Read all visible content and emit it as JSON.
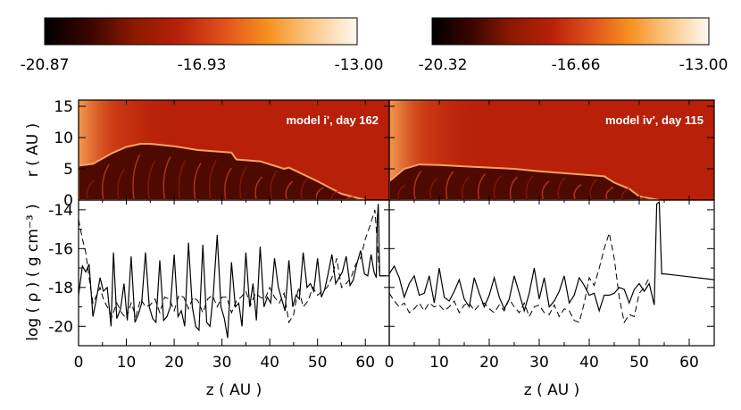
{
  "colors": {
    "colormap": [
      "#000000",
      "#3a0500",
      "#8a1a00",
      "#b8200a",
      "#e0501a",
      "#f7901f",
      "#fbc98a",
      "#fff8f0"
    ],
    "map_background": "#b8200a",
    "solid_line": "#000000",
    "dashed_line": "#000000"
  },
  "colorbars": [
    {
      "ticks": [
        "-20.87",
        "-16.93",
        "-13.00"
      ]
    },
    {
      "ticks": [
        "-20.32",
        "-16.66",
        "-13.00"
      ]
    }
  ],
  "chart_data": [
    {
      "type": "heatmap",
      "panel": "top-left",
      "annotation": "model i', day 162",
      "xlabel": "",
      "ylabel": "r ( AU )",
      "xlim": [
        0,
        65
      ],
      "ylim": [
        0,
        16
      ],
      "yticks": [
        "0",
        "5",
        "10",
        "15"
      ],
      "shell_outline": {
        "x": [
          0,
          3,
          7,
          10,
          13,
          15,
          20,
          25,
          32,
          33,
          38,
          43,
          44,
          50,
          55,
          60
        ],
        "y": [
          5.5,
          5.8,
          7.5,
          8.5,
          9.0,
          9.0,
          8.6,
          8.0,
          7.6,
          6.5,
          6.2,
          5.0,
          5.2,
          3.0,
          1.0,
          0
        ]
      }
    },
    {
      "type": "heatmap",
      "panel": "top-right",
      "annotation": "model iv', day 115",
      "xlabel": "",
      "ylabel": "",
      "xlim": [
        0,
        65
      ],
      "ylim": [
        0,
        16
      ],
      "shell_outline": {
        "x": [
          0,
          3,
          6,
          10,
          15,
          20,
          25,
          30,
          35,
          40,
          43,
          45,
          48,
          50,
          54
        ],
        "y": [
          3.0,
          5.0,
          5.7,
          5.6,
          5.4,
          5.2,
          5.0,
          4.6,
          4.3,
          4.0,
          3.8,
          2.8,
          1.8,
          0.6,
          0
        ]
      }
    },
    {
      "type": "line",
      "panel": "bottom-left",
      "xlabel": "z ( AU )",
      "ylabel": "log ( ρ ) ( g cm⁻³ )",
      "xlim": [
        0,
        65
      ],
      "ylim": [
        -21,
        -13.5
      ],
      "xticks": [
        "0",
        "10",
        "20",
        "30",
        "40",
        "50",
        "60"
      ],
      "yticks": [
        "-20",
        "-18",
        "-16",
        "-14"
      ],
      "series": [
        {
          "style": "solid",
          "x": [
            0,
            0.8,
            1.5,
            2.2,
            3,
            3.8,
            4.5,
            5.2,
            6,
            6.8,
            7.3,
            8,
            8.8,
            9.5,
            10.2,
            11,
            11.8,
            12.5,
            13.2,
            14,
            14.8,
            15.5,
            16.2,
            17,
            17.8,
            18.5,
            19.2,
            20,
            20.8,
            21.5,
            22.2,
            23,
            23.8,
            24.5,
            25.2,
            26,
            26.8,
            27.5,
            28.2,
            29,
            29.8,
            30.5,
            31.2,
            32,
            32.8,
            33.5,
            34.2,
            35,
            35.8,
            36.5,
            37.2,
            38,
            38.8,
            39.5,
            40.2,
            41,
            41.8,
            42.5,
            43.2,
            44,
            44.8,
            45.5,
            46.2,
            47,
            47.8,
            48.5,
            49.2,
            50,
            50.8,
            51.5,
            52.2,
            53,
            53.8,
            54.5,
            55.2,
            56,
            56.8,
            57.5,
            58.2,
            59,
            59.8,
            60.5,
            61.2,
            61.8,
            62.3,
            62.5,
            62.7,
            63,
            65
          ],
          "y": [
            -18.4,
            -16.9,
            -17.2,
            -16.8,
            -19.5,
            -18.5,
            -17.5,
            -18.2,
            -18.0,
            -20.0,
            -16.2,
            -19.6,
            -19.1,
            -17.8,
            -19.7,
            -16.4,
            -19.8,
            -19.4,
            -18.8,
            -16.2,
            -19.0,
            -19.6,
            -19.8,
            -16.6,
            -19.7,
            -19.5,
            -19.0,
            -16.3,
            -19.5,
            -19.2,
            -20.0,
            -15.7,
            -19.0,
            -20.0,
            -20.2,
            -15.8,
            -19.8,
            -20.0,
            -18.3,
            -15.3,
            -19.0,
            -19.6,
            -20.6,
            -16.7,
            -19.0,
            -18.8,
            -20.0,
            -16.2,
            -19.0,
            -17.8,
            -19.7,
            -15.9,
            -19.0,
            -18.5,
            -18.8,
            -16.5,
            -18.0,
            -18.6,
            -19.2,
            -16.6,
            -19.0,
            -18.4,
            -18.6,
            -16.2,
            -18.0,
            -17.8,
            -18.2,
            -16.5,
            -18.5,
            -18.1,
            -17.3,
            -16.3,
            -17.8,
            -17.5,
            -17.2,
            -16.4,
            -17.9,
            -17.6,
            -16.8,
            -16.1,
            -17.3,
            -17.4,
            -16.3,
            -17.2,
            -17.5,
            -14.5,
            -13.7,
            -17.4,
            -17.4
          ]
        },
        {
          "style": "dashed",
          "x": [
            0,
            0.8,
            1.5,
            2.2,
            3,
            3.8,
            4.5,
            5.2,
            6,
            7,
            8,
            9,
            10,
            11,
            12,
            13,
            14,
            15,
            16,
            17,
            18,
            19,
            20,
            21,
            22,
            23,
            24,
            25,
            26,
            27,
            28,
            29,
            30,
            31,
            32,
            33,
            34,
            35,
            36,
            37,
            38,
            39,
            40,
            41,
            42,
            43,
            44,
            45,
            46,
            47,
            48,
            49,
            50,
            51,
            52,
            53,
            54,
            55,
            56,
            57,
            58,
            59,
            60,
            61,
            62,
            63,
            65
          ],
          "y": [
            -14.5,
            -15.5,
            -16.2,
            -17.5,
            -18.8,
            -18.4,
            -18.0,
            -18.6,
            -19.0,
            -19.5,
            -18.8,
            -19.3,
            -19.6,
            -18.8,
            -19.5,
            -18.6,
            -19.0,
            -18.9,
            -18.6,
            -19.3,
            -18.5,
            -18.6,
            -19.2,
            -18.4,
            -18.5,
            -19.1,
            -18.5,
            -18.7,
            -19.3,
            -18.6,
            -18.4,
            -19.0,
            -18.5,
            -18.5,
            -19.3,
            -18.7,
            -18.5,
            -18.2,
            -18.9,
            -18.3,
            -18.5,
            -18.6,
            -18.0,
            -18.5,
            -18.8,
            -18.3,
            -19.8,
            -19.4,
            -18.0,
            -19.0,
            -18.7,
            -18.0,
            -18.4,
            -18.2,
            -18.0,
            -17.5,
            -16.5,
            -18.0,
            -17.8,
            -17.5,
            -16.8,
            -16.5,
            -15.5,
            -14.8,
            -14.0,
            -17.4,
            -17.4
          ]
        }
      ]
    },
    {
      "type": "line",
      "panel": "bottom-right",
      "xlabel": "z ( AU )",
      "ylabel": "",
      "xlim": [
        0,
        65
      ],
      "ylim": [
        -21,
        -13.5
      ],
      "xticks": [
        "0",
        "10",
        "20",
        "30",
        "40",
        "50",
        "60"
      ],
      "series": [
        {
          "style": "solid",
          "x": [
            0,
            1,
            2,
            3,
            4,
            5,
            6,
            7,
            8,
            9,
            10,
            11,
            12,
            13,
            14,
            15,
            16,
            17,
            18,
            19,
            20,
            21,
            22,
            23,
            24,
            25,
            26,
            27,
            28,
            29,
            30,
            31,
            32,
            33,
            34,
            35,
            36,
            37,
            38,
            39,
            40,
            41,
            42,
            43,
            44,
            45,
            46,
            47,
            48,
            49,
            50,
            51,
            52,
            53,
            53.5,
            54,
            54.5,
            55,
            65
          ],
          "y": [
            -17.3,
            -16.9,
            -17.5,
            -18.5,
            -17.8,
            -17.4,
            -18.4,
            -18.3,
            -17.4,
            -18.8,
            -17.0,
            -18.5,
            -18.7,
            -18.2,
            -17.6,
            -18.6,
            -19.0,
            -17.5,
            -18.3,
            -19.0,
            -18.4,
            -17.5,
            -18.5,
            -19.1,
            -18.6,
            -17.4,
            -18.3,
            -19.2,
            -18.3,
            -17.0,
            -18.6,
            -17.5,
            -19.0,
            -18.7,
            -18.2,
            -17.4,
            -18.8,
            -18.4,
            -17.5,
            -17.9,
            -18.4,
            -18.3,
            -19.2,
            -18.4,
            -18.4,
            -18.3,
            -18.0,
            -18.1,
            -18.8,
            -18.1,
            -17.8,
            -18.2,
            -17.8,
            -18.9,
            -13.7,
            -13.6,
            -17.3,
            -17.3,
            -17.6
          ]
        },
        {
          "style": "dashed",
          "x": [
            0,
            1,
            2,
            3,
            4,
            5,
            6,
            7,
            8,
            9,
            10,
            11,
            12,
            13,
            14,
            15,
            16,
            17,
            18,
            19,
            20,
            21,
            22,
            23,
            24,
            25,
            26,
            27,
            28,
            29,
            30,
            31,
            32,
            33,
            34,
            35,
            36,
            37,
            38,
            39,
            40,
            41,
            42,
            43,
            44,
            45,
            46,
            47,
            48,
            49,
            50,
            51,
            52
          ],
          "y": [
            -18.3,
            -18.7,
            -19.0,
            -18.8,
            -19.3,
            -19.1,
            -18.8,
            -19.2,
            -18.8,
            -19.0,
            -18.9,
            -19.2,
            -19.0,
            -18.7,
            -19.3,
            -18.9,
            -18.8,
            -19.2,
            -18.9,
            -18.8,
            -19.1,
            -19.3,
            -18.9,
            -19.2,
            -18.6,
            -19.0,
            -19.3,
            -18.8,
            -19.5,
            -19.0,
            -18.9,
            -19.3,
            -19.4,
            -18.9,
            -19.5,
            -19.1,
            -19.2,
            -19.7,
            -19.8,
            -18.8,
            -17.5,
            -17.9,
            -17.0,
            -16.0,
            -15.2,
            -16.5,
            -18.5,
            -19.8,
            -19.4,
            -19.5,
            -18.3,
            -18.0,
            -17.5
          ]
        }
      ]
    }
  ]
}
